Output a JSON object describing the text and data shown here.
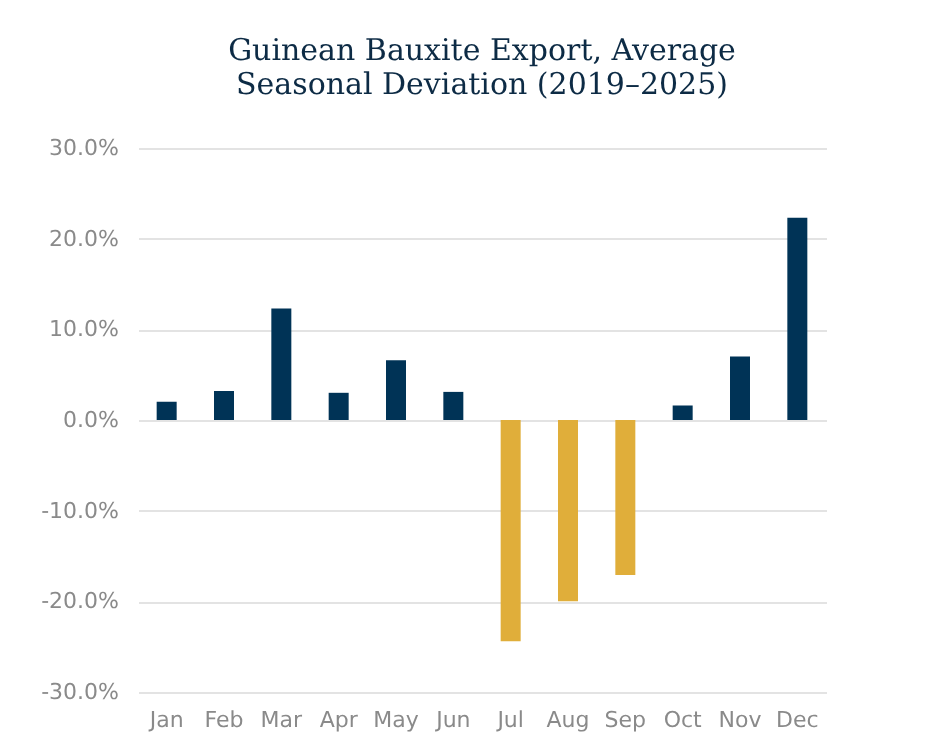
{
  "chart_data": {
    "type": "bar",
    "title": "Guinean Bauxite Export, Average Seasonal Deviation (2019–2025)",
    "categories": [
      "Jan",
      "Feb",
      "Mar",
      "Apr",
      "May",
      "Jun",
      "Jul",
      "Aug",
      "Sep",
      "Oct",
      "Nov",
      "Dec"
    ],
    "values": [
      2.0,
      3.2,
      12.3,
      3.0,
      6.6,
      3.1,
      -24.4,
      -20.0,
      -17.1,
      1.6,
      7.0,
      22.3
    ],
    "colors": [
      "#003356",
      "#003356",
      "#003356",
      "#003356",
      "#003356",
      "#003356",
      "#e0ae3a",
      "#e0ae3a",
      "#e0ae3a",
      "#003356",
      "#003356",
      "#003356"
    ],
    "ylim": [
      -30,
      30
    ],
    "yticks": [
      {
        "value": -30,
        "label": "-30.0%"
      },
      {
        "value": -20,
        "label": "-20.0%"
      },
      {
        "value": -10,
        "label": "-10.0%"
      },
      {
        "value": 0,
        "label": "0.0%"
      },
      {
        "value": 10,
        "label": "10.0%"
      },
      {
        "value": 20,
        "label": "20.0%"
      },
      {
        "value": 30,
        "label": "30.0%"
      }
    ],
    "grid": "y"
  }
}
